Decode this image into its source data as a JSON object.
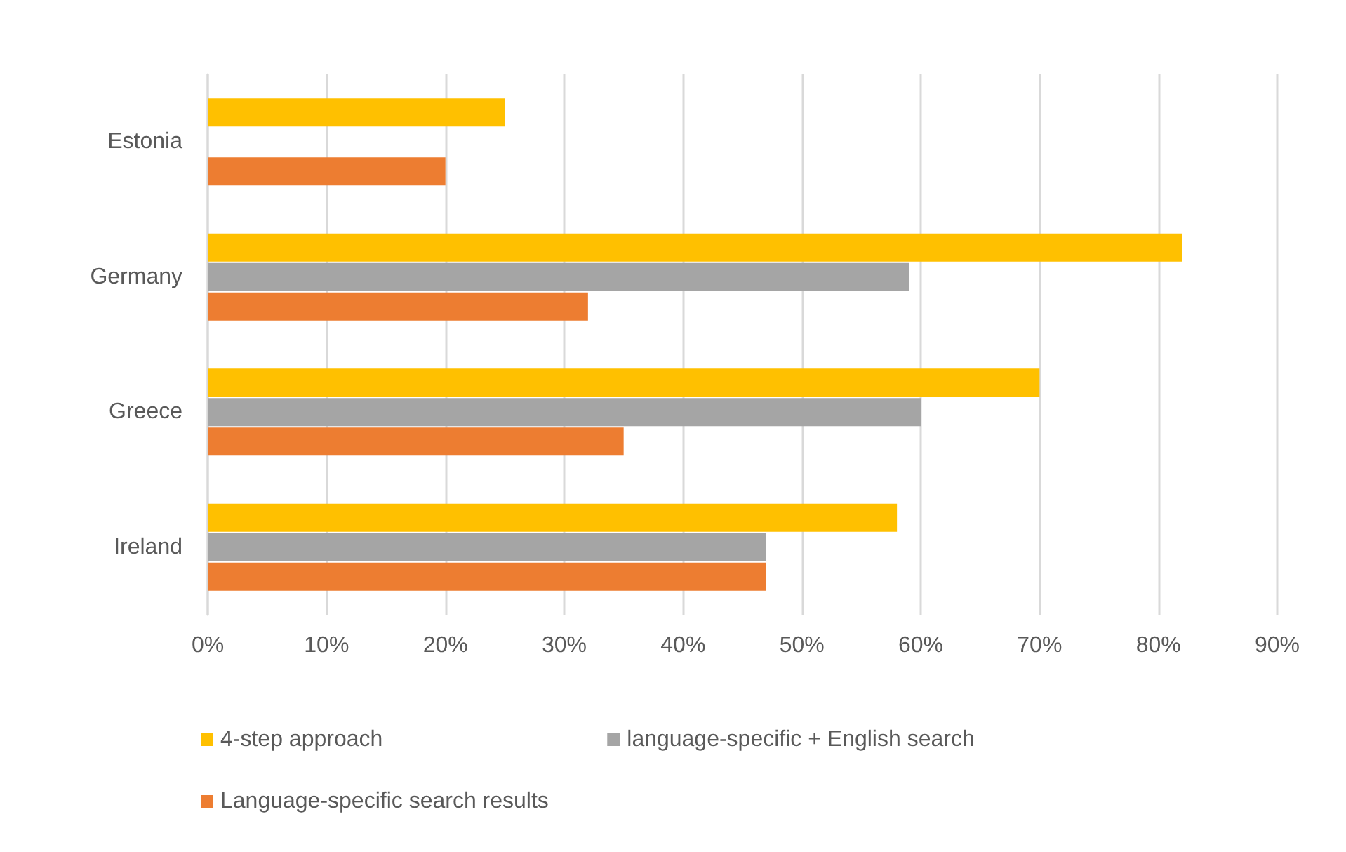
{
  "chart_data": {
    "type": "bar",
    "orientation": "horizontal",
    "categories": [
      "Estonia",
      "Germany",
      "Greece",
      "Ireland"
    ],
    "series": [
      {
        "name": "4-step approach",
        "color": "#ffc000",
        "values": [
          25,
          82,
          70,
          58
        ]
      },
      {
        "name": "language-specific + English search",
        "color": "#a5a5a5",
        "values": [
          null,
          59,
          60,
          47
        ]
      },
      {
        "name": "Language-specific search results",
        "color": "#ed7d31",
        "values": [
          20,
          32,
          35,
          47
        ]
      }
    ],
    "xlim": [
      0,
      90
    ],
    "xticks": [
      {
        "value": 0,
        "label": "0%"
      },
      {
        "value": 10,
        "label": "10%"
      },
      {
        "value": 20,
        "label": "20%"
      },
      {
        "value": 30,
        "label": "30%"
      },
      {
        "value": 40,
        "label": "40%"
      },
      {
        "value": 50,
        "label": "50%"
      },
      {
        "value": 60,
        "label": "60%"
      },
      {
        "value": 70,
        "label": "70%"
      },
      {
        "value": 80,
        "label": "80%"
      },
      {
        "value": 90,
        "label": "90%"
      }
    ],
    "grid": "x",
    "legend": "bottom"
  }
}
